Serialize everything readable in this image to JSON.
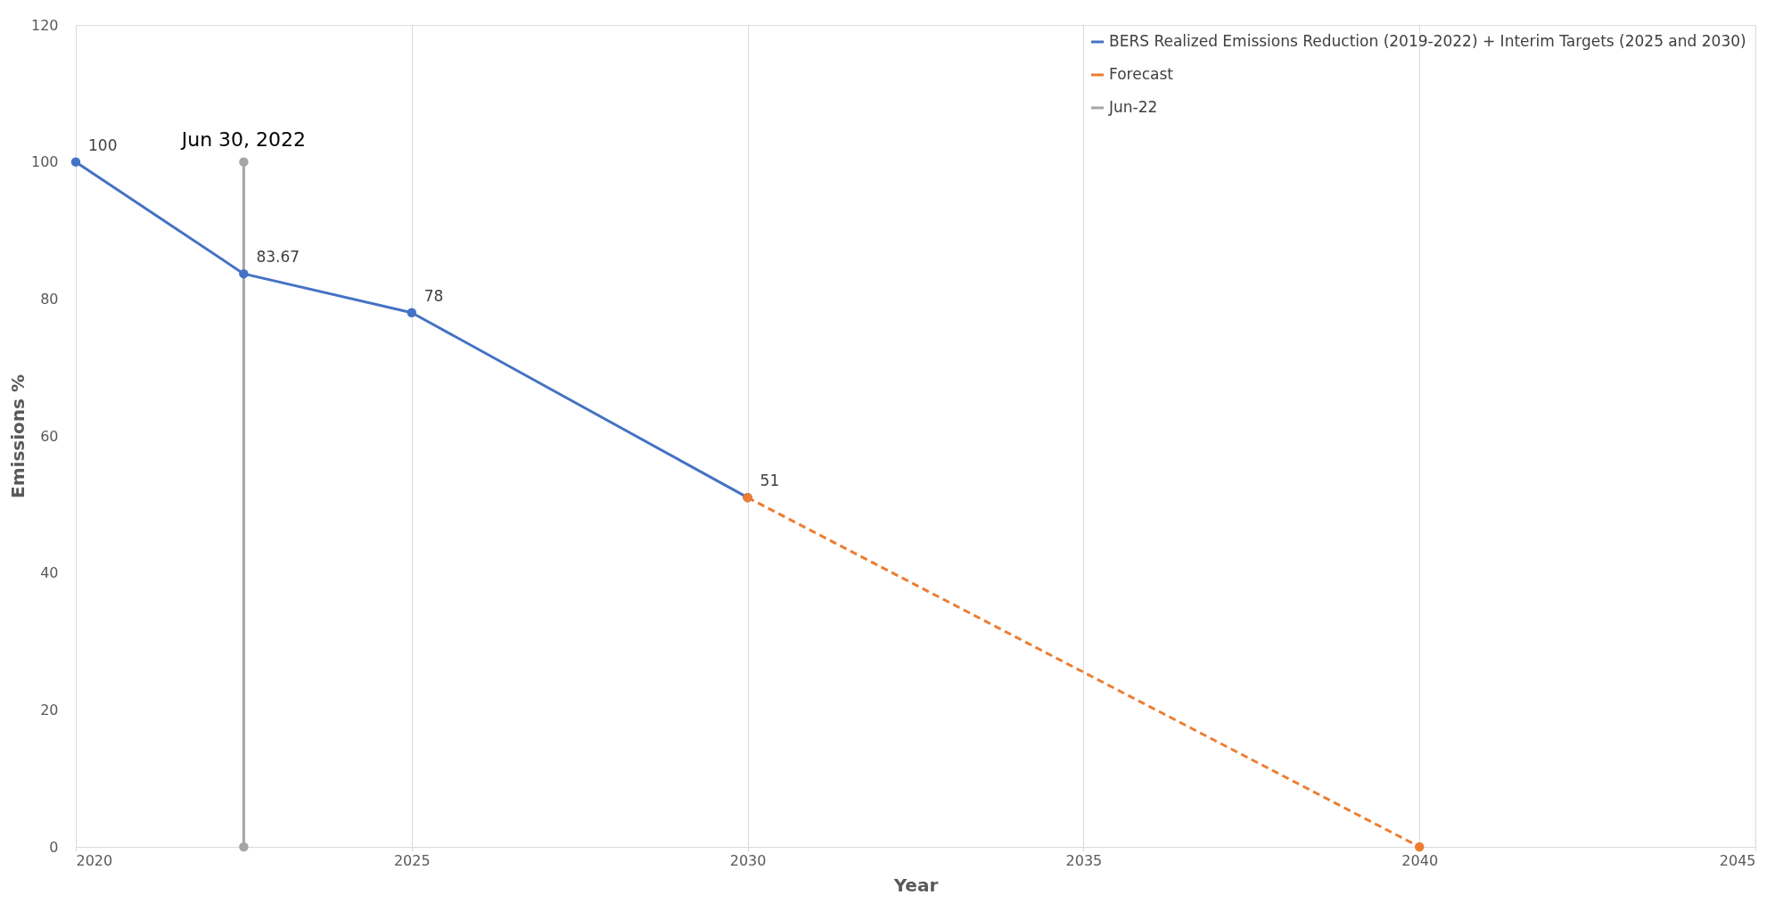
{
  "chart_data": {
    "type": "line",
    "xlabel": "Year",
    "ylabel": "Emissions %",
    "xlim": [
      2020,
      2045
    ],
    "xticks": [
      2020,
      2025,
      2030,
      2035,
      2040,
      2045
    ],
    "ylim": [
      0,
      120
    ],
    "yticks": [
      0,
      20,
      40,
      60,
      80,
      100,
      120
    ],
    "series": [
      {
        "name": "BERS Realized Emissions Reduction (2019-2022) + Interim Targets (2025 and 2030)",
        "color": "#4472c4",
        "x": [
          2020,
          2022.5,
          2025,
          2030
        ],
        "values": [
          100,
          83.67,
          78,
          51
        ],
        "value_labels": [
          "100",
          "83.67",
          "78",
          "51"
        ],
        "line_style": "solid"
      },
      {
        "name": "Forecast",
        "color": "#ed7d31",
        "x": [
          2030,
          2040
        ],
        "values": [
          51,
          0
        ],
        "line_style": "dashed"
      },
      {
        "name": "Jun-22",
        "color": "#a5a5a5",
        "x": [
          2022.5,
          2022.5
        ],
        "values": [
          100,
          0
        ],
        "line_style": "solid"
      }
    ],
    "annotations": [
      {
        "text": "Jun 30, 2022",
        "x": 2022.5,
        "y": 100
      }
    ],
    "grid": "x",
    "legend": "top right",
    "marker": "circle"
  }
}
